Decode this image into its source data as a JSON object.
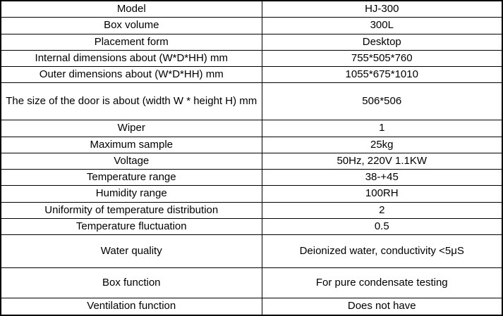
{
  "table": {
    "name": "product-specification-table",
    "border_color": "#000000",
    "text_color": "#000000",
    "background_color": "#ffffff",
    "rows": [
      {
        "label": "Model",
        "value": "HJ-300"
      },
      {
        "label": "Box volume",
        "value": "300L"
      },
      {
        "label": "Placement form",
        "value": "Desktop"
      },
      {
        "label": "Internal dimensions about (W*D*HH) mm",
        "value": "755*505*760"
      },
      {
        "label": "Outer dimensions about (W*D*HH) mm",
        "value": "1055*675*1010"
      },
      {
        "label": "The size of the door is about (width W * height H) mm",
        "value": "506*506"
      },
      {
        "label": "Wiper",
        "value": "1"
      },
      {
        "label": "Maximum sample",
        "value": "25kg"
      },
      {
        "label": "Voltage",
        "value": "50Hz, 220V 1.1KW"
      },
      {
        "label": "Temperature range",
        "value": "38-+45"
      },
      {
        "label": "Humidity range",
        "value": "100RH"
      },
      {
        "label": "Uniformity of temperature distribution",
        "value": "2"
      },
      {
        "label": "Temperature fluctuation",
        "value": "0.5"
      },
      {
        "label": "Water quality",
        "value": "Deionized water, conductivity <5μS"
      },
      {
        "label": "Box function",
        "value": "For pure condensate testing"
      },
      {
        "label": "Ventilation function",
        "value": "Does not have"
      }
    ]
  }
}
